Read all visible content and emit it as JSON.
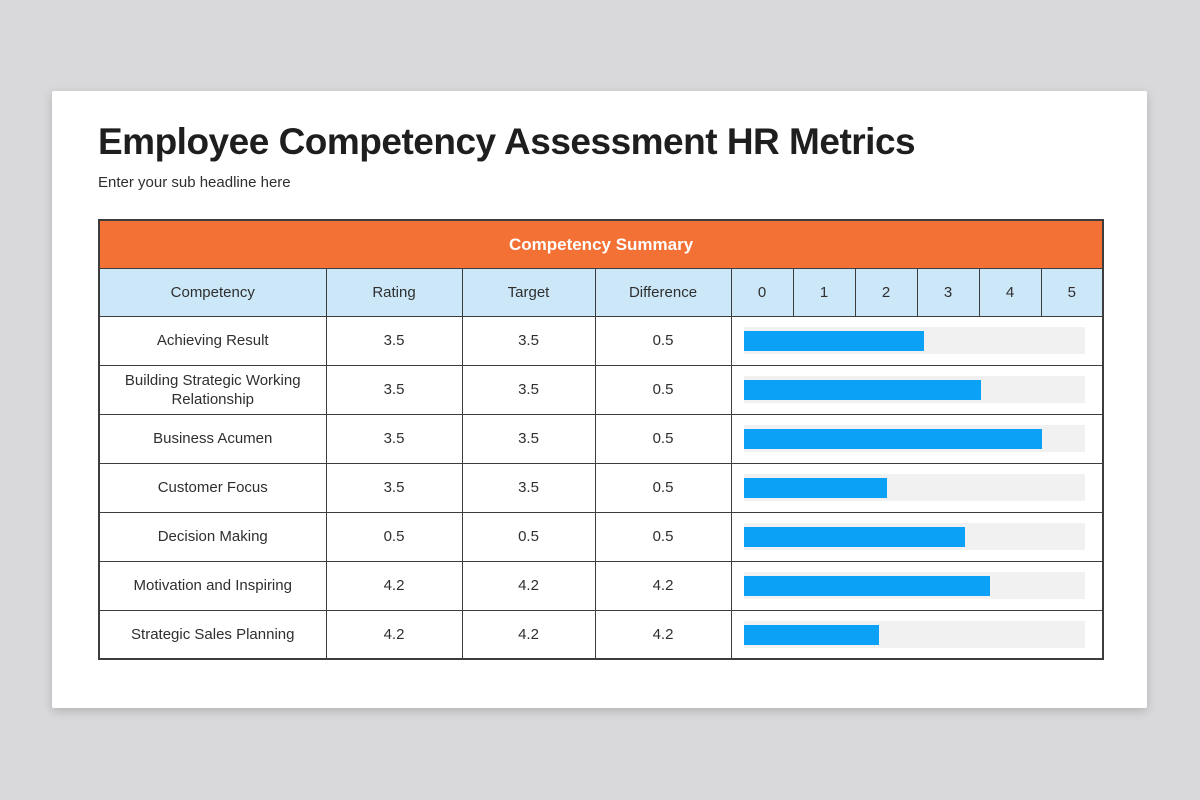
{
  "colors": {
    "page_background": "#d9d9dc",
    "card_background": "#ffffff",
    "table_title_bg": "#f47135",
    "table_title_text": "#ffffff",
    "header_cell_bg": "#cce8f8",
    "bar_fill": "#0aa1f7",
    "bar_track": "#f1f1f1",
    "border": "#3d3d3d"
  },
  "header": {
    "title": "Employee Competency Assessment HR Metrics",
    "subtitle": "Enter your sub headline here"
  },
  "table": {
    "title": "Competency Summary",
    "columns": [
      "Competency",
      "Rating",
      "Target",
      "Difference"
    ],
    "scale_columns": [
      "0",
      "1",
      "2",
      "3",
      "4",
      "5"
    ],
    "rows": [
      {
        "competency": "Achieving Result",
        "rating": "3.5",
        "target": "3.5",
        "difference": "0.5",
        "bar_percent": 52.7
      },
      {
        "competency": "Building Strategic Working Relationship",
        "rating": "3.5",
        "target": "3.5",
        "difference": "0.5",
        "bar_percent": 69.5
      },
      {
        "competency": "Business Acumen",
        "rating": "3.5",
        "target": "3.5",
        "difference": "0.5",
        "bar_percent": 87.4
      },
      {
        "competency": "Customer Focus",
        "rating": "3.5",
        "target": "3.5",
        "difference": "0.5",
        "bar_percent": 42.0
      },
      {
        "competency": "Decision Making",
        "rating": "0.5",
        "target": "0.5",
        "difference": "0.5",
        "bar_percent": 64.8
      },
      {
        "competency": "Motivation and Inspiring",
        "rating": "4.2",
        "target": "4.2",
        "difference": "4.2",
        "bar_percent": 72.2
      },
      {
        "competency": "Strategic Sales Planning",
        "rating": "4.2",
        "target": "4.2",
        "difference": "4.2",
        "bar_percent": 39.6
      }
    ]
  },
  "chart_data": {
    "type": "table",
    "title": "Competency Summary",
    "columns": [
      "Competency",
      "Rating",
      "Target",
      "Difference",
      "Bar value (0-5 scale)"
    ],
    "bar_axis": {
      "min": 0,
      "max": 5,
      "ticks": [
        0,
        1,
        2,
        3,
        4,
        5
      ]
    },
    "rows": [
      {
        "competency": "Achieving Result",
        "rating": 3.5,
        "target": 3.5,
        "difference": 0.5,
        "bar_value": 2.6
      },
      {
        "competency": "Building Strategic Working Relationship",
        "rating": 3.5,
        "target": 3.5,
        "difference": 0.5,
        "bar_value": 3.5
      },
      {
        "competency": "Business Acumen",
        "rating": 3.5,
        "target": 3.5,
        "difference": 0.5,
        "bar_value": 4.4
      },
      {
        "competency": "Customer Focus",
        "rating": 3.5,
        "target": 3.5,
        "difference": 0.5,
        "bar_value": 2.1
      },
      {
        "competency": "Decision Making",
        "rating": 0.5,
        "target": 0.5,
        "difference": 0.5,
        "bar_value": 3.2
      },
      {
        "competency": "Motivation and Inspiring",
        "rating": 4.2,
        "target": 4.2,
        "difference": 4.2,
        "bar_value": 3.6
      },
      {
        "competency": "Strategic Sales Planning",
        "rating": 4.2,
        "target": 4.2,
        "difference": 4.2,
        "bar_value": 2.0
      }
    ],
    "bar_color": "#0aa1f7",
    "legend": "none",
    "grid": "table borders"
  }
}
